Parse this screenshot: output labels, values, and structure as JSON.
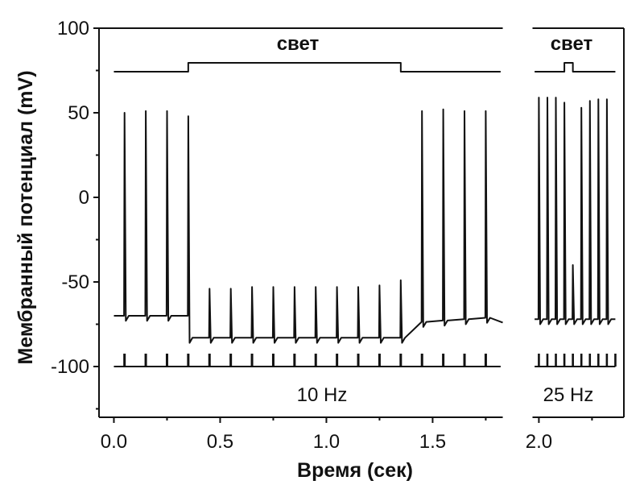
{
  "chart_data": {
    "type": "line",
    "xlabel": "Время (сек)",
    "ylabel": "Мембранный потенциал (mV)",
    "xlim": [
      -0.07,
      2.4
    ],
    "ylim": [
      -130,
      100
    ],
    "x_ticks": [
      0.0,
      0.5,
      1.0,
      1.5,
      2.0
    ],
    "x_tick_labels": [
      "0.0",
      "0.5",
      "1.0",
      "1.5",
      "2.0"
    ],
    "y_ticks": [
      100,
      50,
      0,
      -50,
      -100
    ],
    "y_tick_labels": [
      "100",
      "50",
      "0",
      "-50",
      "-100"
    ],
    "grid": false,
    "axis_break": [
      1.83,
      1.97
    ],
    "annotations": {
      "light_left": "свет",
      "light_right": "свет",
      "freq_left": "10 Hz",
      "freq_right": "25 Hz"
    },
    "light_on_intervals": [
      [
        0.35,
        1.35
      ],
      [
        2.12,
        2.16
      ]
    ],
    "stimulus_pulses_10hz": [
      0.05,
      0.15,
      0.25,
      0.35,
      0.45,
      0.55,
      0.65,
      0.75,
      0.85,
      0.95,
      1.05,
      1.15,
      1.25,
      1.35,
      1.45,
      1.55,
      1.65,
      1.75
    ],
    "stimulus_pulses_25hz": [
      2.0,
      2.04,
      2.08,
      2.12,
      2.16,
      2.2,
      2.24,
      2.28,
      2.32,
      2.36
    ],
    "segment_1": {
      "baseline": -70,
      "spikes": [
        {
          "t": 0.05,
          "peak": 50
        },
        {
          "t": 0.15,
          "peak": 51
        },
        {
          "t": 0.25,
          "peak": 51
        },
        {
          "t": 0.35,
          "peak": 48
        },
        {
          "t": 0.45,
          "peak": -54
        },
        {
          "t": 0.55,
          "peak": -54
        },
        {
          "t": 0.65,
          "peak": -53
        },
        {
          "t": 0.75,
          "peak": -53
        },
        {
          "t": 0.85,
          "peak": -53
        },
        {
          "t": 0.95,
          "peak": -53
        },
        {
          "t": 1.05,
          "peak": -53
        },
        {
          "t": 1.15,
          "peak": -53
        },
        {
          "t": 1.25,
          "peak": -52
        },
        {
          "t": 1.35,
          "peak": -49
        },
        {
          "t": 1.45,
          "peak": 51
        },
        {
          "t": 1.55,
          "peak": 52
        },
        {
          "t": 1.65,
          "peak": 51
        },
        {
          "t": 1.75,
          "peak": 51
        }
      ],
      "hyperpolarized_level": -83
    },
    "segment_2": {
      "baseline": -72,
      "spikes": [
        {
          "t": 2.0,
          "peak": 59
        },
        {
          "t": 2.04,
          "peak": 59
        },
        {
          "t": 2.08,
          "peak": 59
        },
        {
          "t": 2.12,
          "peak": 56
        },
        {
          "t": 2.16,
          "peak": -40
        },
        {
          "t": 2.2,
          "peak": 53
        },
        {
          "t": 2.24,
          "peak": 57
        },
        {
          "t": 2.28,
          "peak": 58
        },
        {
          "t": 2.32,
          "peak": 58
        }
      ]
    }
  }
}
